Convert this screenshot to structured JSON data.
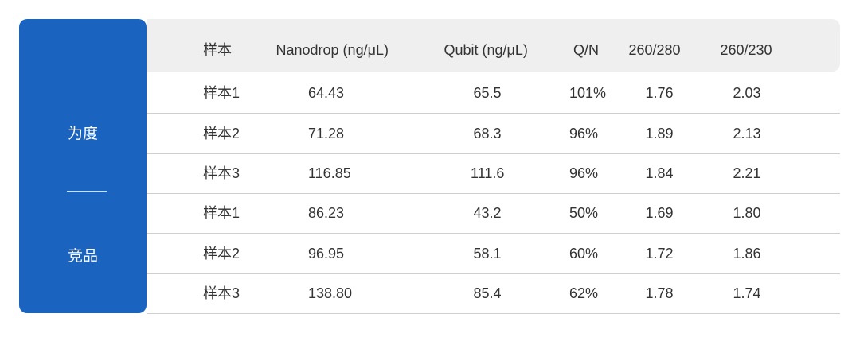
{
  "groups": [
    "为度",
    "竞品"
  ],
  "table": {
    "header": [
      "样本",
      "Nanodrop (ng/μL)",
      "Qubit (ng/μL)",
      "Q/N",
      "260/280",
      "260/230"
    ],
    "rows": [
      [
        "样本1",
        "64.43",
        "65.5",
        "101%",
        "1.76",
        "2.03"
      ],
      [
        "样本2",
        "71.28",
        "68.3",
        "96%",
        "1.89",
        "2.13"
      ],
      [
        "样本3",
        "116.85",
        "111.6",
        "96%",
        "1.84",
        "2.21"
      ],
      [
        "样本1",
        "86.23",
        "43.2",
        "50%",
        "1.69",
        "1.80"
      ],
      [
        "样本2",
        "96.95",
        "58.1",
        "60%",
        "1.72",
        "1.86"
      ],
      [
        "样本3",
        "138.80",
        "85.4",
        "62%",
        "1.78",
        "1.74"
      ]
    ]
  }
}
